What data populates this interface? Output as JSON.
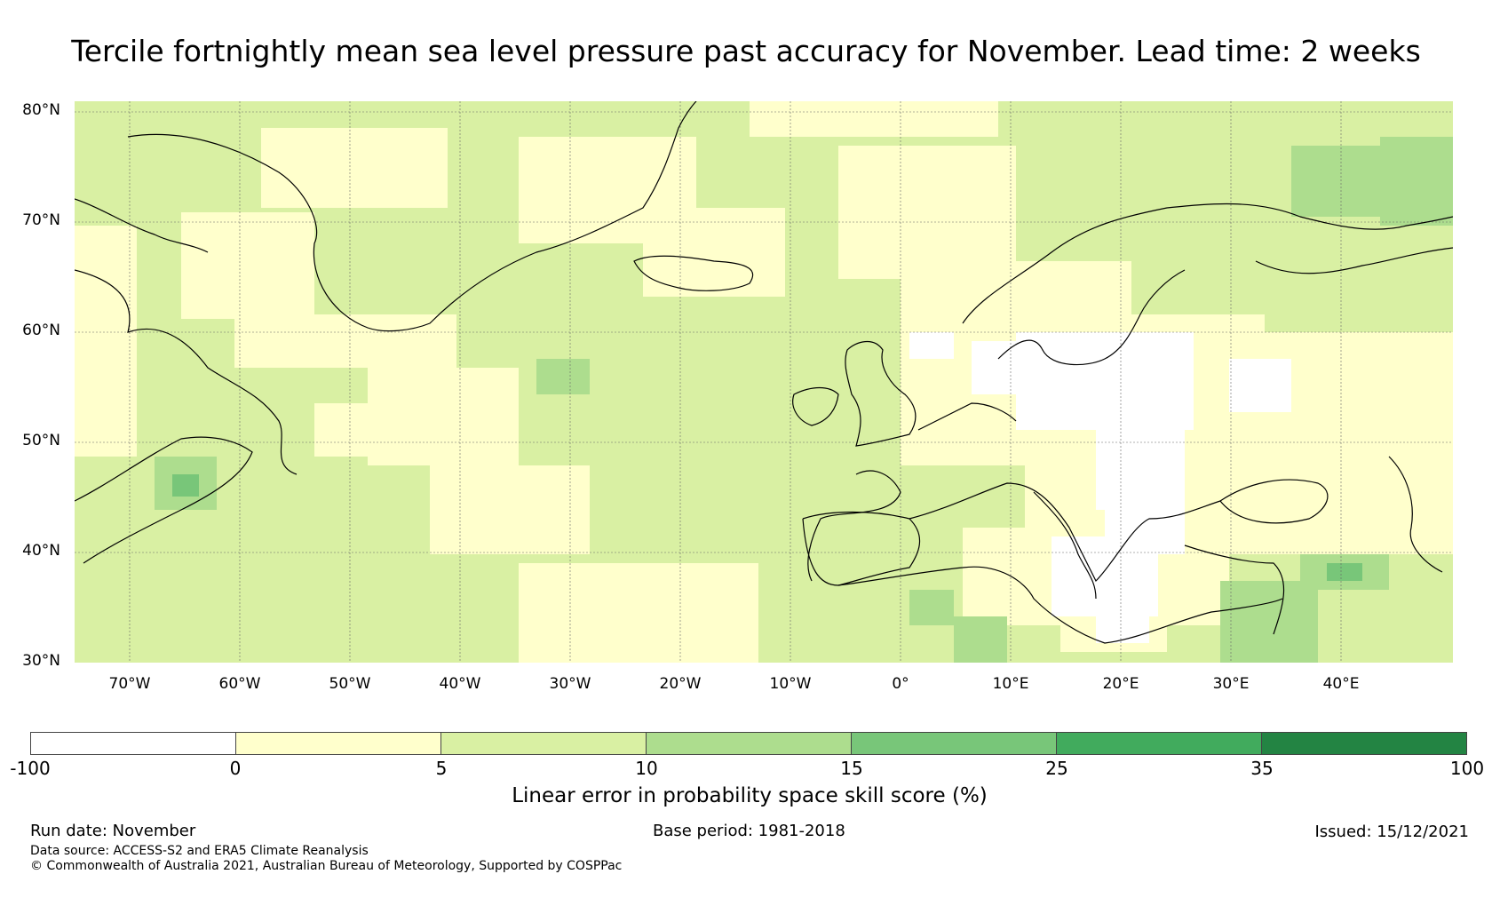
{
  "title": "Tercile fortnightly mean sea level pressure past accuracy for November. Lead time: 2 weeks",
  "map": {
    "lat_labels": [
      "80°N",
      "70°N",
      "60°N",
      "50°N",
      "40°N",
      "30°N"
    ],
    "lon_labels": [
      "70°W",
      "60°W",
      "50°W",
      "40°W",
      "30°W",
      "20°W",
      "10°W",
      "0°",
      "10°E",
      "20°E",
      "30°E",
      "40°E"
    ],
    "extent": {
      "lon_min": -75,
      "lon_max": 50,
      "lat_min": 30,
      "lat_max": 81
    }
  },
  "colorbar": {
    "ticks": [
      "-100",
      "0",
      "5",
      "10",
      "15",
      "25",
      "35",
      "100"
    ],
    "colors": [
      "#ffffff",
      "#ffffcc",
      "#d9f0a3",
      "#addd8e",
      "#78c679",
      "#41ab5d",
      "#238443"
    ],
    "label": "Linear error in probability space skill score (%)"
  },
  "footer": {
    "run_date": "Run date: November",
    "base_period": "Base period: 1981-2018",
    "issued": "Issued: 15/12/2021",
    "data_source": "Data source: ACCESS-S2 and ERA5 Climate Reanalysis",
    "copyright": "© Commonwealth of Australia 2021, Australian Bureau of Meteorology, Supported by COSPPac"
  }
}
